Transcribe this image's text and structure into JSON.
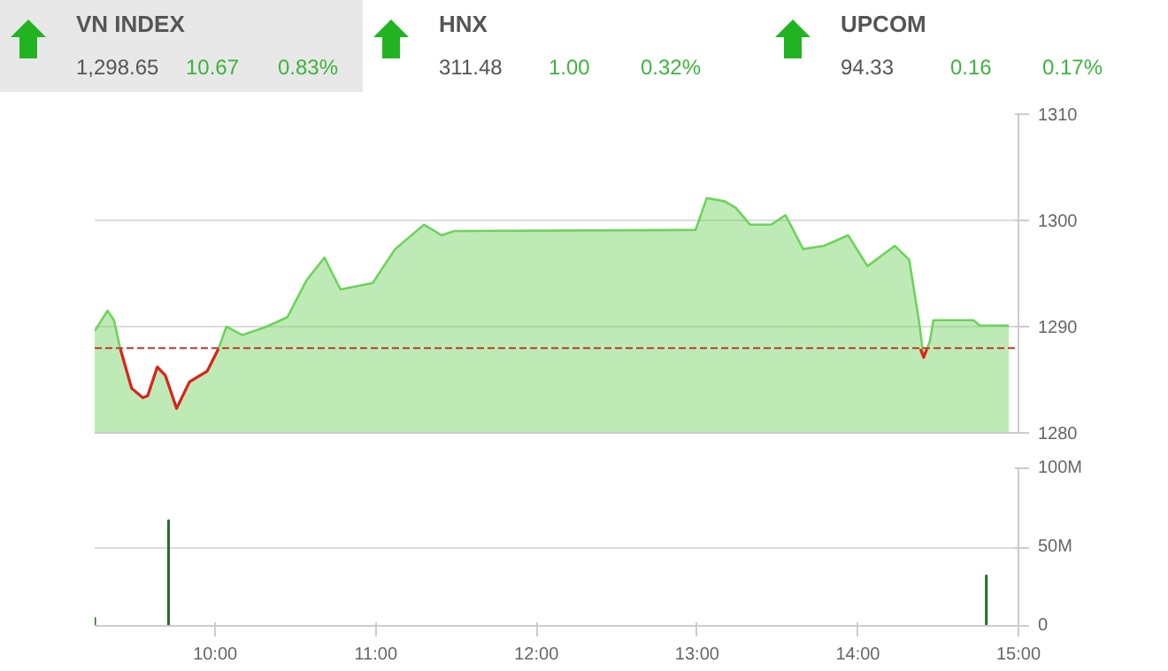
{
  "chart_data": [
    {
      "type": "other",
      "annotations": [
        "VN INDEX",
        "1,298.65",
        "10.67",
        "0.83%",
        "HNX",
        "311.48",
        "1.00",
        "0.32%",
        "UPCOM",
        "94.33",
        "0.16",
        "0.17%"
      ]
    },
    {
      "type": "area",
      "xlim": [
        9.25,
        15
      ],
      "ylim": [
        1280,
        1310
      ],
      "yticks": [
        1280,
        1290,
        1300,
        1310
      ],
      "tick_labels": "y",
      "grid": "y",
      "marker": "none",
      "x": [
        9.25,
        9.33,
        9.37,
        9.41,
        9.48,
        9.55,
        9.58,
        9.64,
        9.69,
        9.76,
        9.84,
        9.95,
        10.02,
        10.07,
        10.17,
        10.32,
        10.45,
        10.57,
        10.68,
        10.78,
        10.98,
        11.12,
        11.3,
        11.41,
        11.49,
        12.99,
        13.06,
        13.17,
        13.24,
        13.33,
        13.46,
        13.55,
        13.66,
        13.79,
        13.94,
        14.06,
        14.23,
        14.32,
        14.38,
        14.41,
        14.45,
        14.47,
        14.72,
        14.76,
        14.94
      ],
      "series": [
        {
          "type": "area",
          "color": "#6ed35c",
          "values": [
            1289.6,
            1291.5,
            1290.6,
            1287.9,
            1284.2,
            1283.3,
            1283.5,
            1286.2,
            1285.4,
            1282.3,
            1284.8,
            1285.8,
            1287.9,
            1290.0,
            1289.2,
            1290.0,
            1290.9,
            1294.4,
            1296.5,
            1293.5,
            1294.1,
            1297.3,
            1299.6,
            1298.6,
            1299.0,
            1299.1,
            1302.1,
            1301.8,
            1301.2,
            1299.6,
            1299.6,
            1300.5,
            1297.3,
            1297.6,
            1298.6,
            1295.7,
            1297.6,
            1296.3,
            1290.6,
            1287.1,
            1288.7,
            1290.6,
            1290.6,
            1290.1,
            1290.1
          ]
        },
        {
          "type": "line",
          "color": "#e0211b",
          "x": [
            9.41,
            9.48,
            9.55,
            9.58,
            9.64,
            9.69,
            9.76,
            9.84,
            9.95,
            10.02,
            null,
            14.39,
            14.41,
            14.43
          ],
          "values": [
            1287.9,
            1284.2,
            1283.3,
            1283.5,
            1286.2,
            1285.4,
            1282.3,
            1284.8,
            1285.8,
            1287.9,
            null,
            1287.9,
            1287.1,
            1287.9
          ]
        }
      ],
      "ref_lines": [
        {
          "axis": "y",
          "value": 1287.98,
          "color": "#c0392b",
          "line_style": "dashed"
        }
      ]
    },
    {
      "type": "bar",
      "xlim": [
        9.25,
        15
      ],
      "xticks": [
        {
          "value": 10,
          "label": "10:00"
        },
        {
          "value": 11,
          "label": "11:00"
        },
        {
          "value": 12,
          "label": "12:00"
        },
        {
          "value": 13,
          "label": "13:00"
        },
        {
          "value": 14,
          "label": "14:00"
        },
        {
          "value": 15,
          "label": "15:00"
        }
      ],
      "ylim": [
        0,
        100
      ],
      "yticks": [
        0,
        {
          "value": 50,
          "label": "50M"
        },
        {
          "value": 100,
          "label": "100M"
        }
      ],
      "grid": "y",
      "color": "#2e6b2e",
      "x": [
        9.25,
        9.71,
        14.8
      ],
      "values": [
        5,
        67,
        32
      ]
    }
  ]
}
